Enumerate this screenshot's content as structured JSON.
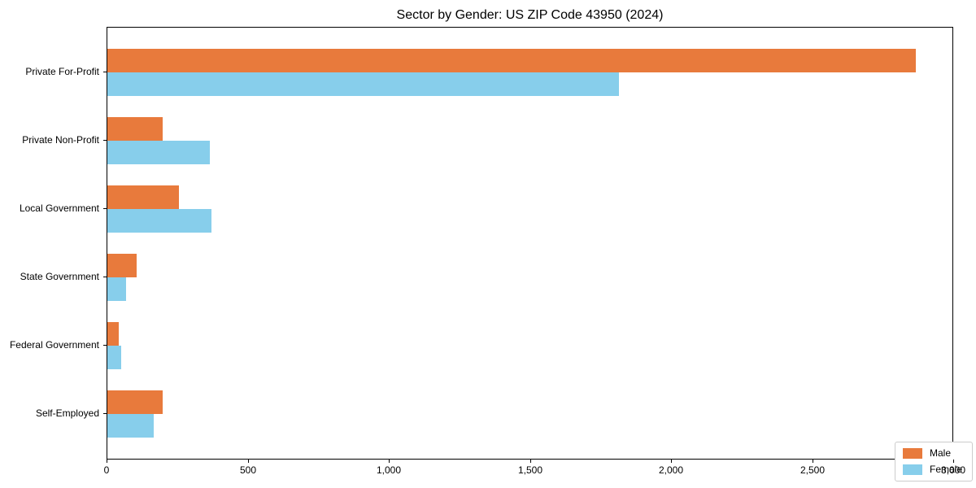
{
  "chart_data": {
    "type": "bar",
    "orientation": "horizontal",
    "title": "Sector by Gender: US ZIP Code 43950 (2024)",
    "categories": [
      "Private For-Profit",
      "Private Non-Profit",
      "Local Government",
      "State Government",
      "Federal Government",
      "Self-Employed"
    ],
    "series": [
      {
        "name": "Male",
        "color": "#E87A3C",
        "values": [
          2870,
          195,
          255,
          105,
          40,
          195
        ]
      },
      {
        "name": "Female",
        "color": "#87CEEB",
        "values": [
          1815,
          365,
          370,
          65,
          50,
          165
        ]
      }
    ],
    "xlabel": "",
    "ylabel": "",
    "xlim": [
      0,
      3000
    ],
    "xticks": [
      0,
      500,
      1000,
      1500,
      2000,
      2500,
      3000
    ],
    "xtick_labels": [
      "0",
      "500",
      "1,000",
      "1,500",
      "2,000",
      "2,500",
      "3,000"
    ],
    "grid": false,
    "background_color": "#ffffff",
    "axis_color": "#000000",
    "legend": {
      "position": "lower right",
      "entries": [
        "Male",
        "Female"
      ]
    }
  }
}
